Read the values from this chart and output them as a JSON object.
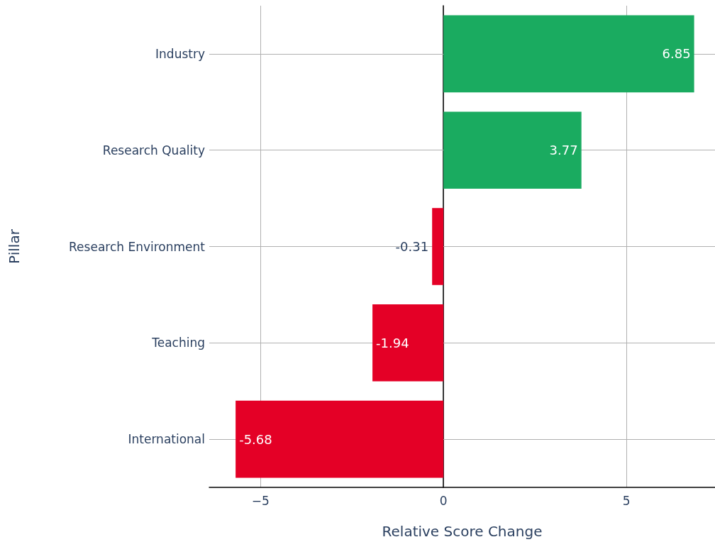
{
  "chart_data": {
    "type": "bar",
    "orientation": "horizontal",
    "xlabel": "Relative Score Change",
    "ylabel": "Pillar",
    "categories": [
      "Industry",
      "Research Quality",
      "Research Environment",
      "Teaching",
      "International"
    ],
    "values": [
      6.85,
      3.77,
      -0.31,
      -1.94,
      -5.68
    ],
    "colors": [
      "#1aab60",
      "#1aab60",
      "#e40026",
      "#e40026",
      "#e40026"
    ],
    "xlim": [
      -6.4,
      7.42
    ],
    "xticks": [
      {
        "value": -5,
        "label": "−5"
      },
      0,
      5
    ],
    "grid": true,
    "data_labels": true
  }
}
